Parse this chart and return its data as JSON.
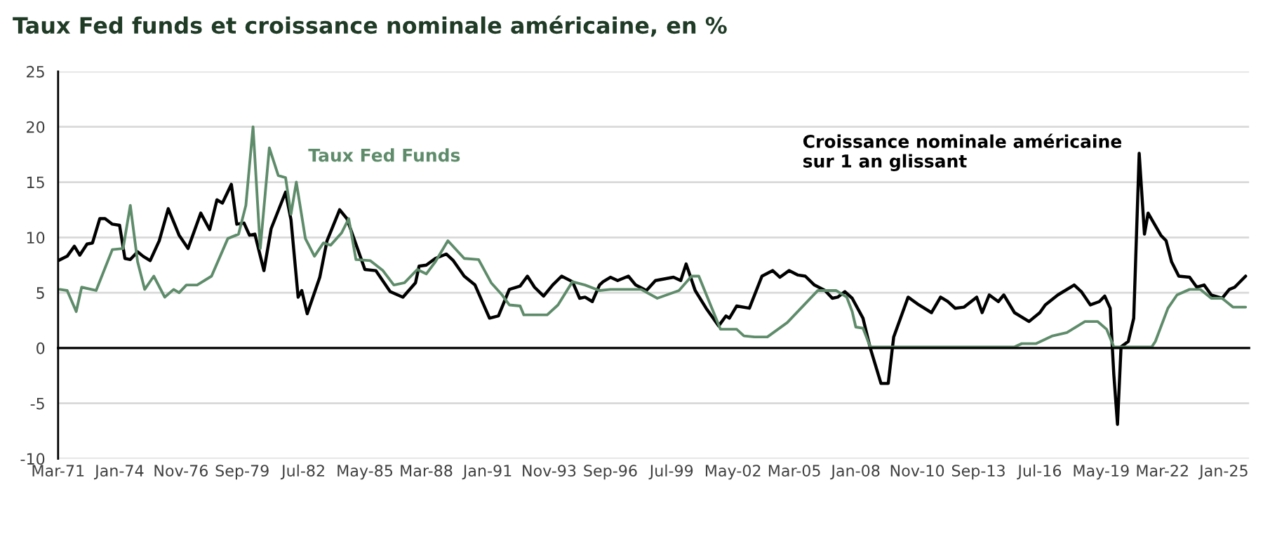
{
  "chart_data": {
    "type": "line",
    "title": "Taux Fed funds et croissance nominale américaine, en %",
    "series": [
      {
        "name": "Croissance nominale américaine\nsur 1 an glissant",
        "color": "#000000",
        "x": [
          "1971-03",
          "1971-08",
          "1971-12",
          "1972-03",
          "1972-07",
          "1972-10",
          "1973-02",
          "1973-05",
          "1973-09",
          "1974-01",
          "1974-04",
          "1974-07",
          "1974-11",
          "1975-02",
          "1975-06",
          "1975-11",
          "1976-04",
          "1976-10",
          "1977-03",
          "1977-10",
          "1978-03",
          "1978-07",
          "1978-10",
          "1979-03",
          "1979-06",
          "1979-10",
          "1980-01",
          "1980-04",
          "1980-09",
          "1981-01",
          "1981-09",
          "1981-12",
          "1982-04",
          "1982-06",
          "1982-09",
          "1983-04",
          "1983-08",
          "1984-03",
          "1984-07",
          "1985-05",
          "1985-11",
          "1986-07",
          "1987-02",
          "1987-09",
          "1987-11",
          "1988-03",
          "1988-08",
          "1989-02",
          "1989-06",
          "1989-12",
          "1990-06",
          "1991-02",
          "1991-07",
          "1992-01",
          "1992-07",
          "1992-11",
          "1993-03",
          "1993-08",
          "1994-01",
          "1994-06",
          "1994-12",
          "1995-04",
          "1995-07",
          "1995-11",
          "1996-03",
          "1996-05",
          "1996-09",
          "1997-01",
          "1997-07",
          "1997-11",
          "1998-05",
          "1998-10",
          "1999-08",
          "1999-12",
          "2000-03",
          "2000-08",
          "2001-02",
          "2001-09",
          "2002-01",
          "2002-03",
          "2002-07",
          "2003-02",
          "2003-09",
          "2004-03",
          "2004-07",
          "2004-12",
          "2005-05",
          "2005-09",
          "2006-02",
          "2006-08",
          "2006-12",
          "2007-03",
          "2007-07",
          "2007-11",
          "2008-05",
          "2008-09",
          "2009-03",
          "2009-07",
          "2009-10",
          "2010-06",
          "2010-12",
          "2011-07",
          "2011-12",
          "2012-04",
          "2012-08",
          "2013-01",
          "2013-08",
          "2013-11",
          "2014-03",
          "2014-08",
          "2014-11",
          "2015-05",
          "2016-01",
          "2016-07",
          "2016-10",
          "2017-05",
          "2018-02",
          "2018-06",
          "2018-11",
          "2019-04",
          "2019-07",
          "2019-10",
          "2019-12",
          "2020-02",
          "2020-04",
          "2020-08",
          "2020-11",
          "2021-02",
          "2021-05",
          "2021-07",
          "2022-02",
          "2022-05",
          "2022-08",
          "2022-12",
          "2023-06",
          "2023-10",
          "2024-02",
          "2024-06",
          "2024-12",
          "2025-04",
          "2025-07",
          "2026-01"
        ],
        "values": [
          7.9,
          8.3,
          9.2,
          8.4,
          9.4,
          9.5,
          11.7,
          11.7,
          11.2,
          11.1,
          8.1,
          8.0,
          8.7,
          8.3,
          7.9,
          9.7,
          12.6,
          10.2,
          9.0,
          12.2,
          10.7,
          13.4,
          13.1,
          14.8,
          11.2,
          11.3,
          10.2,
          10.3,
          7.0,
          10.8,
          14.1,
          11.6,
          4.6,
          5.2,
          3.1,
          6.4,
          9.7,
          12.5,
          11.7,
          7.1,
          7.0,
          5.1,
          4.6,
          5.9,
          7.4,
          7.5,
          8.1,
          8.5,
          7.9,
          6.5,
          5.7,
          2.7,
          2.9,
          5.3,
          5.6,
          6.5,
          5.5,
          4.7,
          5.7,
          6.5,
          6.0,
          4.5,
          4.6,
          4.2,
          5.7,
          6.0,
          6.4,
          6.1,
          6.5,
          5.7,
          5.2,
          6.1,
          6.4,
          6.1,
          7.6,
          5.2,
          3.6,
          2.0,
          2.9,
          2.7,
          3.8,
          3.6,
          6.5,
          7.0,
          6.4,
          7.0,
          6.6,
          6.5,
          5.7,
          5.2,
          4.5,
          4.6,
          5.1,
          4.5,
          2.7,
          0.0,
          -3.2,
          -3.2,
          1.0,
          4.6,
          3.9,
          3.2,
          4.6,
          4.2,
          3.6,
          3.7,
          4.6,
          3.2,
          4.8,
          4.2,
          4.8,
          3.2,
          2.4,
          3.2,
          3.9,
          4.8,
          5.7,
          5.1,
          3.9,
          4.2,
          4.7,
          3.6,
          -2.4,
          -6.9,
          0.1,
          0.6,
          2.7,
          17.6,
          10.3,
          12.2,
          10.2,
          9.7,
          7.8,
          6.5,
          6.4,
          5.5,
          5.7,
          4.8,
          4.5,
          5.3,
          5.5,
          6.5
        ]
      },
      {
        "name": "Taux Fed Funds",
        "color": "#5e8c6a",
        "x": [
          "1971-04",
          "1971-08",
          "1972-01",
          "1972-04",
          "1972-12",
          "1973-09",
          "1974-03",
          "1974-07",
          "1974-11",
          "1975-03",
          "1975-08",
          "1976-02",
          "1976-07",
          "1976-10",
          "1977-02",
          "1977-08",
          "1978-04",
          "1979-01",
          "1979-07",
          "1979-11",
          "1980-03",
          "1980-07",
          "1980-12",
          "1981-05",
          "1981-09",
          "1981-12",
          "1982-03",
          "1982-08",
          "1983-01",
          "1983-06",
          "1983-10",
          "1984-04",
          "1984-08",
          "1984-12",
          "1985-08",
          "1986-03",
          "1986-09",
          "1987-03",
          "1987-10",
          "1988-03",
          "1988-08",
          "1989-03",
          "1989-12",
          "1990-08",
          "1991-03",
          "1991-09",
          "1992-01",
          "1992-07",
          "1992-09",
          "1993-10",
          "1994-04",
          "1994-12",
          "1995-07",
          "1996-03",
          "1996-09",
          "1998-02",
          "1998-11",
          "1999-11",
          "2000-06",
          "2000-10",
          "2001-10",
          "2002-07",
          "2002-11",
          "2003-05",
          "2003-12",
          "2004-11",
          "2006-04",
          "2007-02",
          "2007-08",
          "2007-11",
          "2008-01",
          "2008-05",
          "2008-09",
          "2015-05",
          "2015-09",
          "2016-05",
          "2017-02",
          "2017-10",
          "2018-08",
          "2019-03",
          "2019-08",
          "2019-12",
          "2021-09",
          "2021-11",
          "2022-06",
          "2022-11",
          "2023-06",
          "2023-12",
          "2024-06",
          "2024-12",
          "2025-06",
          "2026-01"
        ],
        "values": [
          5.3,
          5.2,
          3.3,
          5.5,
          5.2,
          8.9,
          9.0,
          12.9,
          7.8,
          5.3,
          6.5,
          4.6,
          5.3,
          5.0,
          5.7,
          5.7,
          6.5,
          9.9,
          10.3,
          12.9,
          20.0,
          9.0,
          18.1,
          15.6,
          15.4,
          12.1,
          15.0,
          9.9,
          8.3,
          9.5,
          9.3,
          10.4,
          11.7,
          8.0,
          7.9,
          7.0,
          5.7,
          5.9,
          7.1,
          6.7,
          7.8,
          9.7,
          8.1,
          8.0,
          5.9,
          4.8,
          3.9,
          3.8,
          3.0,
          3.0,
          3.9,
          6.0,
          5.7,
          5.2,
          5.3,
          5.3,
          4.5,
          5.2,
          6.5,
          6.5,
          1.7,
          1.7,
          1.1,
          1.0,
          1.0,
          2.3,
          5.2,
          5.2,
          4.6,
          3.3,
          1.9,
          1.8,
          0.1,
          0.1,
          0.4,
          0.4,
          1.1,
          1.4,
          2.4,
          2.4,
          1.7,
          0.1,
          0.1,
          0.6,
          3.6,
          4.8,
          5.3,
          5.3,
          4.5,
          4.5,
          3.7,
          3.7
        ]
      }
    ],
    "ylim": [
      -10,
      25
    ],
    "yticks": [
      -10,
      -5,
      0,
      5,
      10,
      15,
      20,
      25
    ],
    "xlim": [
      "1971-03",
      "2026-03"
    ],
    "xticks": [
      {
        "value": "1971-03",
        "label": "Mar-71"
      },
      {
        "value": "1974-01",
        "label": "Jan-74"
      },
      {
        "value": "1976-11",
        "label": "Nov-76"
      },
      {
        "value": "1979-09",
        "label": "Sep-79"
      },
      {
        "value": "1982-07",
        "label": "Jul-82"
      },
      {
        "value": "1985-05",
        "label": "May-85"
      },
      {
        "value": "1988-03",
        "label": "Mar-88"
      },
      {
        "value": "1991-01",
        "label": "Jan-91"
      },
      {
        "value": "1993-11",
        "label": "Nov-93"
      },
      {
        "value": "1996-09",
        "label": "Sep-96"
      },
      {
        "value": "1999-07",
        "label": "Jul-99"
      },
      {
        "value": "2002-05",
        "label": "May-02"
      },
      {
        "value": "2005-03",
        "label": "Mar-05"
      },
      {
        "value": "2008-01",
        "label": "Jan-08"
      },
      {
        "value": "2010-11",
        "label": "Nov-10"
      },
      {
        "value": "2013-09",
        "label": "Sep-13"
      },
      {
        "value": "2016-07",
        "label": "Jul-16"
      },
      {
        "value": "2019-05",
        "label": "May-19"
      },
      {
        "value": "2022-03",
        "label": "Mar-22"
      },
      {
        "value": "2025-01",
        "label": "Jan-25"
      }
    ],
    "grid": "y",
    "legend": false,
    "line_style": "solid",
    "marker": "none"
  }
}
